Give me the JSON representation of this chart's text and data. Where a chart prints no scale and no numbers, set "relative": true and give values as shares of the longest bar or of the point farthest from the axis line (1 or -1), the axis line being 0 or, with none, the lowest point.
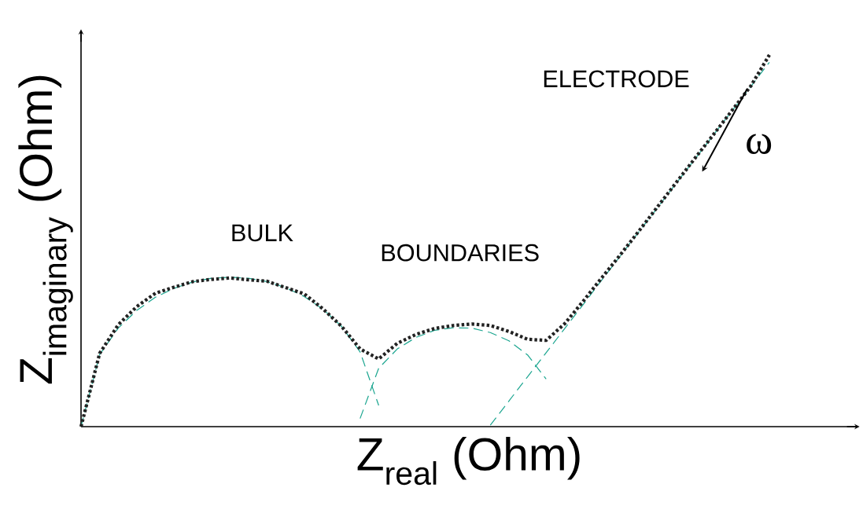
{
  "chart_data": {
    "type": "line",
    "relative": true,
    "xlabel": "\\mathrm{Z_{real}}\\ \\mbox{(Ohm)}",
    "ylabel": "\\mathrm{Z_{imaginary}}\\ \\mbox{(Ohm)}",
    "categories": [
      null,
      null,
      null,
      null,
      null,
      null,
      null,
      null,
      null,
      null,
      null,
      null,
      null,
      null,
      null,
      null,
      null,
      null,
      null,
      null,
      null,
      null,
      null,
      null,
      null,
      null,
      null,
      null,
      null,
      null,
      null,
      null,
      null,
      null,
      null,
      null,
      null,
      null
    ],
    "series": [
      {
        "color": "#1aa58f",
        "line_style": "dashed",
        "values": [
          0,
          0.194,
          0.265,
          0.313,
          0.348,
          0.372,
          0.389,
          0.399,
          0.402,
          0.399,
          0.39,
          0.374,
          0.35,
          0.316,
          0.27,
          0.201,
          0.057,
          null,
          null,
          null,
          null,
          null,
          null,
          null,
          null,
          null,
          null,
          null,
          null,
          null,
          null,
          null,
          null,
          null,
          null,
          null,
          null,
          null
        ]
      },
      {
        "color": "#1aa58f",
        "line_style": "dashed",
        "values": [
          null,
          null,
          null,
          null,
          null,
          null,
          null,
          null,
          null,
          null,
          null,
          null,
          null,
          null,
          null,
          0.022,
          0.157,
          0.209,
          0.24,
          0.259,
          0.266,
          0.265,
          0.253,
          0.231,
          0.193,
          0.128,
          null,
          null,
          null,
          null,
          null,
          null,
          null,
          null,
          null,
          null,
          null,
          null
        ]
      },
      {
        "color": "#1aa58f",
        "line_style": "dashed",
        "values": [
          null,
          null,
          null,
          null,
          null,
          null,
          null,
          null,
          null,
          null,
          null,
          null,
          null,
          null,
          null,
          null,
          null,
          null,
          null,
          null,
          null,
          null,
          0.004,
          0.069,
          0.134,
          0.199,
          0.264,
          0.329,
          0.395,
          0.46,
          0.525,
          0.59,
          0.655,
          0.72,
          0.785,
          0.85,
          0.915,
          0.98
        ]
      },
      {
        "color": "#222222",
        "line_style": "dotted",
        "values": [
          0,
          0.197,
          0.274,
          0.323,
          0.359,
          0.375,
          0.39,
          0.396,
          0.4,
          0.395,
          0.391,
          0.374,
          0.357,
          0.317,
          0.27,
          0.209,
          0.182,
          0.224,
          0.248,
          0.264,
          0.272,
          0.276,
          0.272,
          0.256,
          0.235,
          0.232,
          0.277,
          0.338,
          0.401,
          0.463,
          0.527,
          0.592,
          0.657,
          0.722,
          0.786,
          0.851,
          0.916,
          1.0
        ]
      }
    ],
    "annotations": [
      "BULK",
      "BOUNDARIES",
      "ELECTRODE",
      "ω"
    ]
  }
}
